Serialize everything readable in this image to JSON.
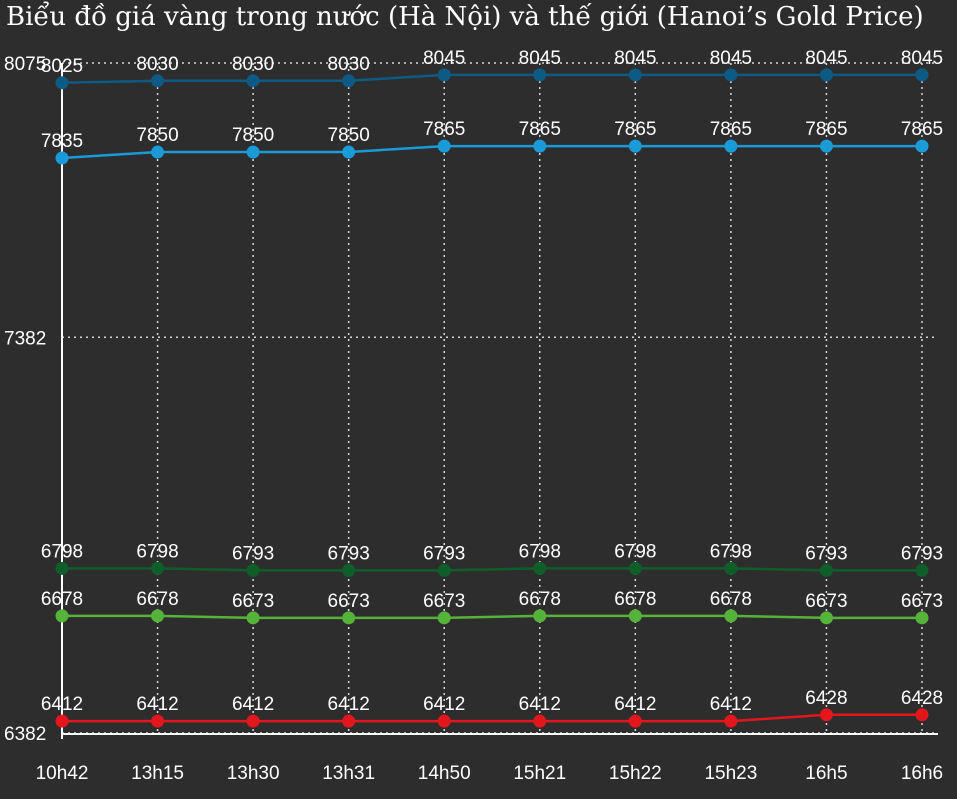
{
  "chart_data": {
    "type": "line",
    "title": "Biểu đồ giá vàng trong nước (Hà Nội) và thế giới (Hanoi’s Gold Price)",
    "categories": [
      "10h42",
      "13h15",
      "13h30",
      "13h31",
      "14h50",
      "15h21",
      "15h22",
      "15h23",
      "16h5",
      "16h6"
    ],
    "ylim": [
      6382,
      8075
    ],
    "yticks": [
      "8075",
      "7382",
      "6382"
    ],
    "grid": true,
    "series": [
      {
        "color": "#0d5a85",
        "values": [
          8025,
          8030,
          8030,
          8030,
          8045,
          8045,
          8045,
          8045,
          8045,
          8045
        ]
      },
      {
        "color": "#1a9ad6",
        "values": [
          7835,
          7850,
          7850,
          7850,
          7865,
          7865,
          7865,
          7865,
          7865,
          7865
        ]
      },
      {
        "color": "#0f5e2a",
        "values": [
          6798,
          6798,
          6793,
          6793,
          6793,
          6798,
          6798,
          6798,
          6793,
          6793
        ]
      },
      {
        "color": "#56b33a",
        "values": [
          6678,
          6678,
          6673,
          6673,
          6673,
          6678,
          6678,
          6678,
          6673,
          6673
        ]
      },
      {
        "color": "#e3161b",
        "values": [
          6412,
          6412,
          6412,
          6412,
          6412,
          6412,
          6412,
          6412,
          6428,
          6428
        ]
      }
    ]
  }
}
